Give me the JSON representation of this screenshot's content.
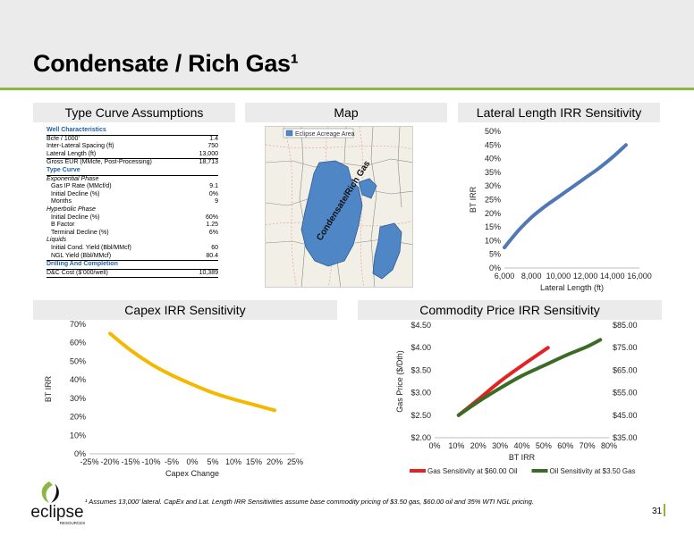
{
  "page": {
    "title": "Condensate / Rich Gas¹",
    "footnote": "¹ Assumes 13,000’ lateral. CapEx and Lat. Length IRR Sensitivities assume base commodity pricing of $3.50 gas, $60.00 oil and 35% WTI NGL pricing.",
    "page_number": "31",
    "accent_color": "#8bb63f"
  },
  "logo": {
    "word": "eclipse",
    "sub": "RESOURCES"
  },
  "panels": {
    "type_curve": "Type Curve Assumptions",
    "map": "Map",
    "lateral": "Lateral Length IRR Sensitivity",
    "capex": "Capex IRR Sensitivity",
    "commodity": "Commodity Price IRR Sensitivity"
  },
  "type_curve_table": {
    "well_characteristics": "Well Characteristics",
    "bcfe": {
      "label": "Bcfe / 1000’",
      "value": "1.4"
    },
    "spacing": {
      "label": "Inter-Lateral Spacing (ft)",
      "value": "750"
    },
    "lateral": {
      "label": "Lateral Length (ft)",
      "value": "13,000"
    },
    "gross_eur": {
      "label": "Gross EUR (MMcfe, Post-Processing)",
      "value": "18,713"
    },
    "type_curve": "Type Curve",
    "exponential": "Exponential Phase",
    "gas_ip": {
      "label": "Gas IP Rate (MMcf/d)",
      "value": "9.1"
    },
    "initial_decline_exp": {
      "label": "Initial Decline (%)",
      "value": "0%"
    },
    "months": {
      "label": "Months",
      "value": "9"
    },
    "hyperbolic": "Hyperbolic Phase",
    "initial_decline_hyp": {
      "label": "Initial Decline (%)",
      "value": "60%"
    },
    "b_factor": {
      "label": "B Factor",
      "value": "1.25"
    },
    "terminal_decline": {
      "label": "Terminal Decline (%)",
      "value": "6%"
    },
    "liquids": "Liquids",
    "cond_yield": {
      "label": "Initial Cond. Yield (Bbl/MMcf)",
      "value": "60"
    },
    "ngl_yield": {
      "label": "NGL Yield (Bbl/MMcf)",
      "value": "80.4"
    },
    "drilling": "Drilling And Completion",
    "dc_cost": {
      "label": "D&C Cost ($’000/well)",
      "value": "10,389"
    }
  },
  "map": {
    "legend": "Eclipse Acreage Area",
    "area_label": "Condensate/Rich Gas",
    "acreage_color": "#4f86c6"
  },
  "chart_data": [
    {
      "id": "lateral",
      "type": "line",
      "xlabel": "Lateral Length (ft)",
      "ylabel": "BT IRR",
      "xlim": [
        6000,
        16000
      ],
      "ylim": [
        0,
        50
      ],
      "x_ticks": [
        "6,000",
        "8,000",
        "10,000",
        "12,000",
        "14,000",
        "16,000"
      ],
      "y_ticks": [
        "0%",
        "5%",
        "10%",
        "15%",
        "20%",
        "25%",
        "30%",
        "35%",
        "40%",
        "45%",
        "50%"
      ],
      "series": [
        {
          "color": "#4f78b5",
          "x": [
            6000,
            7000,
            8000,
            9000,
            10000,
            11000,
            12000,
            13000,
            14000,
            15000
          ],
          "y": [
            7.5,
            13.5,
            18.5,
            22.5,
            26,
            29.5,
            33,
            36.5,
            40.5,
            45
          ]
        }
      ]
    },
    {
      "id": "capex",
      "type": "line",
      "xlabel": "Capex Change",
      "ylabel": "BT IRR",
      "xlim": [
        -25,
        25
      ],
      "ylim": [
        0,
        70
      ],
      "x_ticks": [
        "-25%",
        "-20%",
        "-15%",
        "-10%",
        "-5%",
        "0%",
        "5%",
        "10%",
        "15%",
        "20%",
        "25%"
      ],
      "y_ticks": [
        "0%",
        "10%",
        "20%",
        "30%",
        "40%",
        "50%",
        "60%",
        "70%"
      ],
      "series": [
        {
          "color": "#f5b800",
          "x": [
            -20,
            -15,
            -10,
            -5,
            0,
            5,
            10,
            15,
            20
          ],
          "y": [
            65,
            56,
            48.5,
            42.5,
            37.5,
            33,
            29.5,
            26.5,
            23.5
          ]
        }
      ]
    },
    {
      "id": "commodity",
      "type": "line",
      "xlabel": "BT IRR",
      "ylabel": "Gas Price ($/Dth)",
      "xlim": [
        0,
        80
      ],
      "ylim": [
        2.0,
        4.5
      ],
      "y2lim": [
        35,
        85
      ],
      "x_ticks": [
        "0%",
        "10%",
        "20%",
        "30%",
        "40%",
        "50%",
        "60%",
        "70%",
        "80%"
      ],
      "y_ticks": [
        "$2.00",
        "$2.50",
        "$3.00",
        "$3.50",
        "$4.00",
        "$4.50"
      ],
      "y2_ticks": [
        "$35.00",
        "$45.00",
        "$55.00",
        "$65.00",
        "$75.00",
        "$85.00"
      ],
      "legend": "bottom",
      "series": [
        {
          "name": "Gas Sensitivity at $60.00 Oil",
          "color": "#e32323",
          "axis": "left",
          "x": [
            11,
            20,
            30,
            40,
            52
          ],
          "y": [
            2.5,
            2.85,
            3.25,
            3.6,
            4.0
          ]
        },
        {
          "name": "Oil Sensitivity at $3.50 Gas",
          "color": "#3b6b26",
          "axis": "right",
          "x": [
            11,
            20,
            30,
            40,
            50,
            60,
            70,
            76
          ],
          "y": [
            45,
            51,
            57,
            62.5,
            67,
            71.5,
            75.5,
            78.5
          ]
        }
      ]
    }
  ]
}
